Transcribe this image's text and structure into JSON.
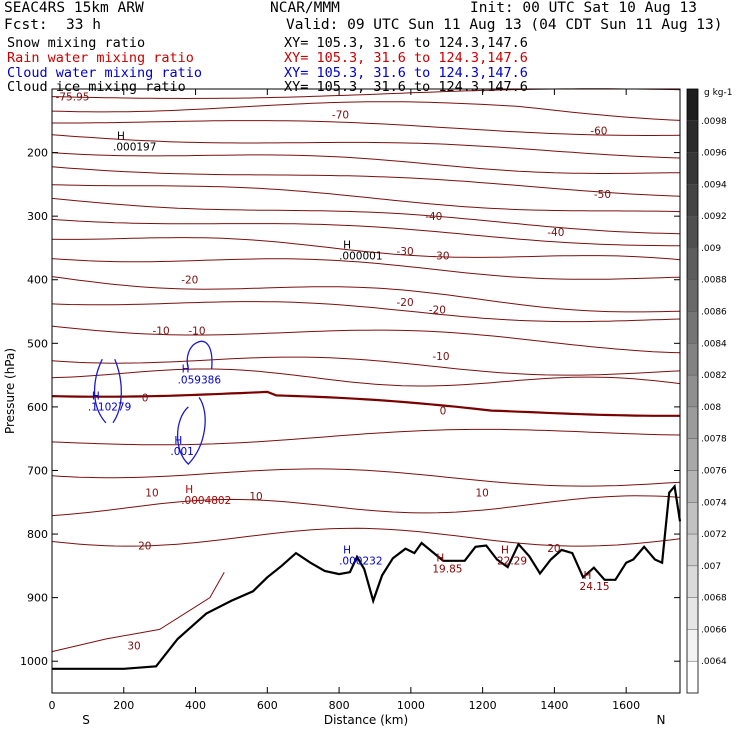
{
  "header": {
    "model": "SEAC4RS 15km ARW",
    "org": "NCAR/MMM",
    "init": "Init: 00 UTC Sat 10 Aug 13",
    "fcst_label": "Fcst:",
    "fcst_value": "33 h",
    "valid": "Valid: 09 UTC Sun 11 Aug 13 (04 CDT Sun 11 Aug 13)"
  },
  "legend": [
    {
      "label": "Snow mixing ratio",
      "xy": "XY= 105.3, 31.6 to 124.3,147.6",
      "color": "#000000"
    },
    {
      "label": "Rain water mixing ratio",
      "xy": "XY= 105.3, 31.6 to 124.3,147.6",
      "color": "#cc0000"
    },
    {
      "label": "Cloud water mixing ratio",
      "xy": "XY= 105.3, 31.6 to 124.3,147.6",
      "color": "#0000cc"
    },
    {
      "label": "Cloud ice mixing ratio",
      "xy": "XY= 105.3, 31.6 to 124.3,147.6",
      "color": "#000000"
    }
  ],
  "chart_data": {
    "type": "line",
    "xlabel": "Distance (km)",
    "ylabel": "Pressure (hPa)",
    "xlim": [
      0,
      1750
    ],
    "ylim": [
      1050,
      100
    ],
    "x_ticks": [
      0,
      200,
      400,
      600,
      800,
      1000,
      1200,
      1400,
      1600
    ],
    "y_ticks": [
      200,
      300,
      400,
      500,
      600,
      700,
      800,
      900,
      1000
    ],
    "x_end_labels": [
      "S",
      "N"
    ],
    "temperature_isotherms_C": [
      -75.95,
      -70,
      -60,
      -50,
      -40,
      -30,
      -20,
      -10,
      0,
      10,
      20,
      30
    ],
    "temperature_labels": [
      {
        "x": 10,
        "p": 112,
        "text": "-75.95"
      },
      {
        "x": 780,
        "p": 140,
        "text": "-70"
      },
      {
        "x": 1500,
        "p": 165,
        "text": "-60"
      },
      {
        "x": 1510,
        "p": 265,
        "text": "-50"
      },
      {
        "x": 1040,
        "p": 300,
        "text": "-40"
      },
      {
        "x": 1380,
        "p": 325,
        "text": "-40"
      },
      {
        "x": 960,
        "p": 355,
        "text": "-30"
      },
      {
        "x": 1060,
        "p": 362,
        "text": "-30"
      },
      {
        "x": 360,
        "p": 400,
        "text": "-20"
      },
      {
        "x": 960,
        "p": 435,
        "text": "-20"
      },
      {
        "x": 1050,
        "p": 447,
        "text": "-20"
      },
      {
        "x": 280,
        "p": 480,
        "text": "-10"
      },
      {
        "x": 380,
        "p": 480,
        "text": "-10"
      },
      {
        "x": 1060,
        "p": 520,
        "text": "-10"
      },
      {
        "x": 250,
        "p": 585,
        "text": "0"
      },
      {
        "x": 1080,
        "p": 606,
        "text": "0"
      },
      {
        "x": 260,
        "p": 735,
        "text": "10"
      },
      {
        "x": 550,
        "p": 740,
        "text": "10"
      },
      {
        "x": 1180,
        "p": 735,
        "text": "10"
      },
      {
        "x": 240,
        "p": 818,
        "text": "20"
      },
      {
        "x": 1380,
        "p": 822,
        "text": "20"
      },
      {
        "x": 210,
        "p": 975,
        "text": "30"
      }
    ],
    "h_labels": [
      {
        "x": 170,
        "p": 189,
        "text": ".000197",
        "color": "#000000"
      },
      {
        "x": 800,
        "p": 360,
        "text": ".000001",
        "color": "#000000"
      },
      {
        "x": 350,
        "p": 555,
        "text": ".059386",
        "color": "#0000cc"
      },
      {
        "x": 100,
        "p": 598,
        "text": ".110279",
        "color": "#0000cc"
      },
      {
        "x": 330,
        "p": 668,
        "text": ".001",
        "color": "#0000cc"
      },
      {
        "x": 360,
        "p": 745,
        "text": ".0004802",
        "color": "#aa0000"
      },
      {
        "x": 800,
        "p": 840,
        "text": ".000232",
        "color": "#0000cc"
      },
      {
        "x": 1060,
        "p": 853,
        "text": "19.85",
        "color": "#880000"
      },
      {
        "x": 1240,
        "p": 840,
        "text": "22.29",
        "color": "#880000"
      },
      {
        "x": 1470,
        "p": 880,
        "text": "24.15",
        "color": "#880000"
      }
    ],
    "terrain": {
      "x": [
        0,
        100,
        200,
        290,
        350,
        430,
        500,
        560,
        600,
        640,
        680,
        720,
        760,
        800,
        830,
        850,
        870,
        895,
        920,
        950,
        985,
        1010,
        1030,
        1060,
        1090,
        1120,
        1150,
        1180,
        1210,
        1240,
        1270,
        1300,
        1330,
        1360,
        1390,
        1420,
        1450,
        1480,
        1510,
        1540,
        1570,
        1600,
        1620,
        1650,
        1680,
        1700,
        1720,
        1735,
        1750
      ],
      "p": [
        1012,
        1012,
        1012,
        1008,
        965,
        925,
        905,
        890,
        868,
        850,
        830,
        845,
        858,
        863,
        860,
        836,
        855,
        905,
        865,
        838,
        823,
        830,
        814,
        828,
        842,
        842,
        842,
        820,
        818,
        840,
        852,
        816,
        835,
        862,
        840,
        825,
        830,
        868,
        853,
        872,
        872,
        845,
        840,
        820,
        840,
        845,
        735,
        725,
        780
      ]
    },
    "colorbar": {
      "unit": "g kg-1",
      "labels": [
        ".0098",
        ".0096",
        ".0094",
        ".0092",
        ".009",
        ".0088",
        ".0086",
        ".0084",
        ".0082",
        ".008",
        ".0078",
        ".0076",
        ".0074",
        ".0072",
        ".007",
        ".0068",
        ".0066",
        ".0064"
      ]
    }
  }
}
